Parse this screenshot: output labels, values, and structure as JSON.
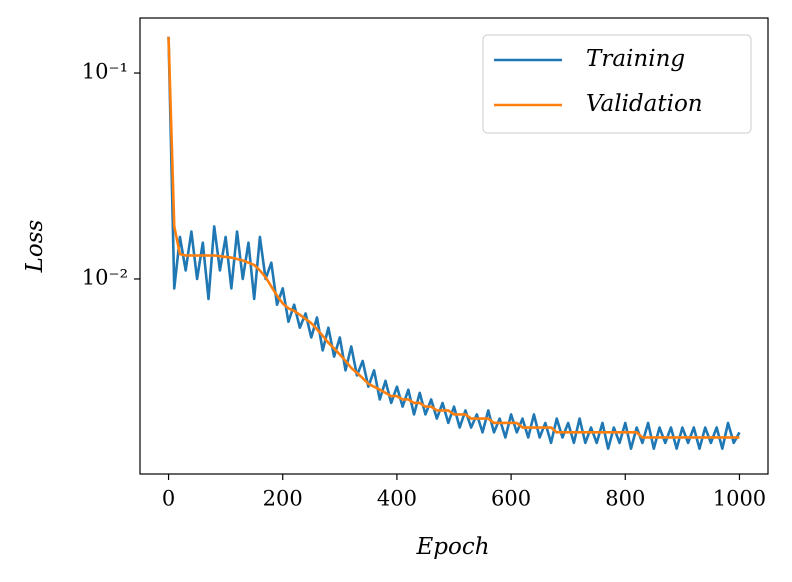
{
  "chart_data": {
    "type": "line",
    "x_label": "Epoch",
    "y_label": "Loss",
    "log_y": true,
    "legend": "upper right",
    "xlim": [
      -50,
      1050
    ],
    "xticks": [
      0,
      200,
      400,
      600,
      800,
      1000
    ],
    "ylim": [
      0.00113,
      0.185
    ],
    "yticks": [
      {
        "value": 0.01,
        "label": "10⁻²"
      },
      {
        "value": 0.1,
        "label": "10⁻¹"
      }
    ],
    "x": [
      0,
      10,
      20,
      30,
      40,
      50,
      60,
      70,
      80,
      90,
      100,
      110,
      120,
      130,
      140,
      150,
      160,
      170,
      180,
      190,
      200,
      210,
      220,
      230,
      240,
      250,
      260,
      270,
      280,
      290,
      300,
      310,
      320,
      330,
      340,
      350,
      360,
      370,
      380,
      390,
      400,
      410,
      420,
      430,
      440,
      450,
      460,
      470,
      480,
      490,
      500,
      510,
      520,
      530,
      540,
      550,
      560,
      570,
      580,
      590,
      600,
      610,
      620,
      630,
      640,
      650,
      660,
      670,
      680,
      690,
      700,
      710,
      720,
      730,
      740,
      750,
      760,
      770,
      780,
      790,
      800,
      810,
      820,
      830,
      840,
      850,
      860,
      870,
      880,
      890,
      900,
      910,
      920,
      930,
      940,
      950,
      960,
      970,
      980,
      990,
      1000
    ],
    "series": [
      {
        "name": "Training",
        "color": "#1f77b4",
        "values": [
          0.15,
          0.009,
          0.016,
          0.011,
          0.017,
          0.01,
          0.015,
          0.008,
          0.018,
          0.011,
          0.016,
          0.009,
          0.017,
          0.01,
          0.015,
          0.008,
          0.016,
          0.01,
          0.012,
          0.0075,
          0.009,
          0.0062,
          0.0075,
          0.0058,
          0.0068,
          0.0052,
          0.0065,
          0.0045,
          0.0058,
          0.0042,
          0.0052,
          0.0036,
          0.0047,
          0.0034,
          0.004,
          0.003,
          0.0036,
          0.0026,
          0.0032,
          0.0025,
          0.003,
          0.0024,
          0.0029,
          0.0022,
          0.0028,
          0.0022,
          0.0026,
          0.0021,
          0.0025,
          0.002,
          0.0024,
          0.0019,
          0.0023,
          0.0019,
          0.0022,
          0.0018,
          0.0023,
          0.0018,
          0.0021,
          0.0017,
          0.0022,
          0.0018,
          0.0021,
          0.0017,
          0.0022,
          0.0017,
          0.002,
          0.0016,
          0.0021,
          0.0017,
          0.002,
          0.0016,
          0.0021,
          0.0016,
          0.0019,
          0.0016,
          0.002,
          0.0015,
          0.0019,
          0.0016,
          0.002,
          0.0015,
          0.0019,
          0.0016,
          0.002,
          0.0015,
          0.0019,
          0.0016,
          0.0019,
          0.0015,
          0.0019,
          0.0016,
          0.0019,
          0.0015,
          0.0019,
          0.0016,
          0.0019,
          0.0015,
          0.002,
          0.0016,
          0.0018
        ]
      },
      {
        "name": "Validation",
        "color": "#ff7f0e",
        "values": [
          0.15,
          0.018,
          0.0132,
          0.013,
          0.013,
          0.013,
          0.013,
          0.013,
          0.013,
          0.0129,
          0.0128,
          0.0127,
          0.0125,
          0.0123,
          0.012,
          0.0117,
          0.011,
          0.0102,
          0.0092,
          0.0083,
          0.0076,
          0.0072,
          0.007,
          0.0067,
          0.0064,
          0.0061,
          0.0057,
          0.0053,
          0.0049,
          0.0046,
          0.0043,
          0.004,
          0.0037,
          0.0035,
          0.0033,
          0.0031,
          0.003,
          0.0029,
          0.0028,
          0.0027,
          0.0027,
          0.0026,
          0.0026,
          0.0025,
          0.0025,
          0.0024,
          0.0024,
          0.0023,
          0.0023,
          0.0023,
          0.0022,
          0.0022,
          0.0022,
          0.0021,
          0.0021,
          0.0021,
          0.0021,
          0.002,
          0.002,
          0.002,
          0.002,
          0.002,
          0.0019,
          0.0019,
          0.0019,
          0.0019,
          0.0019,
          0.0019,
          0.0018,
          0.0018,
          0.0018,
          0.0018,
          0.0018,
          0.0018,
          0.0018,
          0.0018,
          0.0018,
          0.0018,
          0.0018,
          0.0018,
          0.0018,
          0.0018,
          0.0018,
          0.0017,
          0.0017,
          0.0017,
          0.0017,
          0.0017,
          0.0017,
          0.0017,
          0.0017,
          0.0017,
          0.0017,
          0.0017,
          0.0017,
          0.0017,
          0.0017,
          0.0017,
          0.0017,
          0.0017,
          0.0017
        ]
      }
    ]
  }
}
